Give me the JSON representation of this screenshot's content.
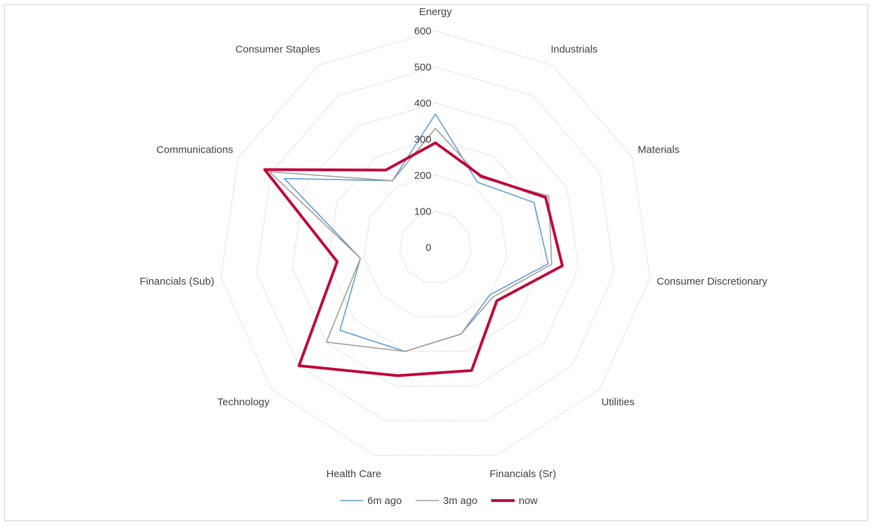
{
  "chart_data": {
    "type": "radar",
    "title": "",
    "categories": [
      "Energy",
      "Industrials",
      "Materials",
      "Consumer Discretionary",
      "Utilities",
      "Financials (Sr)",
      "Health Care",
      "Technology",
      "Financials (Sub)",
      "Communications",
      "Consumer Staples"
    ],
    "radial_ticks": [
      "0",
      "100",
      "200",
      "300",
      "400",
      "500",
      "600"
    ],
    "rlim": [
      0,
      600
    ],
    "grid": true,
    "legend_position": "bottom",
    "series": [
      {
        "name": "6m ago",
        "color": "#5b9bd5",
        "width": 1.6,
        "values": [
          370,
          215,
          300,
          315,
          200,
          250,
          300,
          350,
          210,
          460,
          220
        ]
      },
      {
        "name": "3m ago",
        "color": "#a59b91",
        "width": 1.6,
        "values": [
          330,
          230,
          345,
          325,
          210,
          250,
          300,
          400,
          210,
          505,
          220
        ]
      },
      {
        "name": "now",
        "color": "#c0063a",
        "width": 4,
        "values": [
          290,
          235,
          335,
          355,
          225,
          355,
          370,
          500,
          275,
          520,
          255
        ]
      }
    ]
  }
}
